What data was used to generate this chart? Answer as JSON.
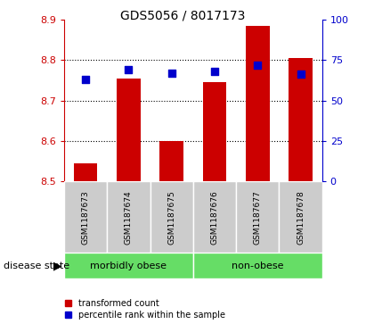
{
  "title": "GDS5056 / 8017173",
  "categories": [
    "GSM1187673",
    "GSM1187674",
    "GSM1187675",
    "GSM1187676",
    "GSM1187677",
    "GSM1187678"
  ],
  "bar_bottom": 8.5,
  "red_values": [
    8.545,
    8.755,
    8.6,
    8.745,
    8.885,
    8.805
  ],
  "blue_pct": [
    63,
    69,
    67,
    68,
    72,
    66
  ],
  "ylim": [
    8.5,
    8.9
  ],
  "y2lim": [
    0,
    100
  ],
  "yticks": [
    8.5,
    8.6,
    8.7,
    8.8,
    8.9
  ],
  "y2ticks": [
    0,
    25,
    50,
    75,
    100
  ],
  "bar_color": "#cc0000",
  "dot_color": "#0000cc",
  "group_labels": [
    "morbidly obese",
    "non-obese"
  ],
  "green_color": "#66dd66",
  "gray_color": "#cccccc",
  "disease_state_label": "disease state",
  "legend_red": "transformed count",
  "legend_blue": "percentile rank within the sample",
  "label_color_red": "#cc0000",
  "label_color_blue": "#0000cc",
  "bar_width": 0.55,
  "dot_size": 30,
  "grid_yticks": [
    8.6,
    8.7,
    8.8
  ]
}
